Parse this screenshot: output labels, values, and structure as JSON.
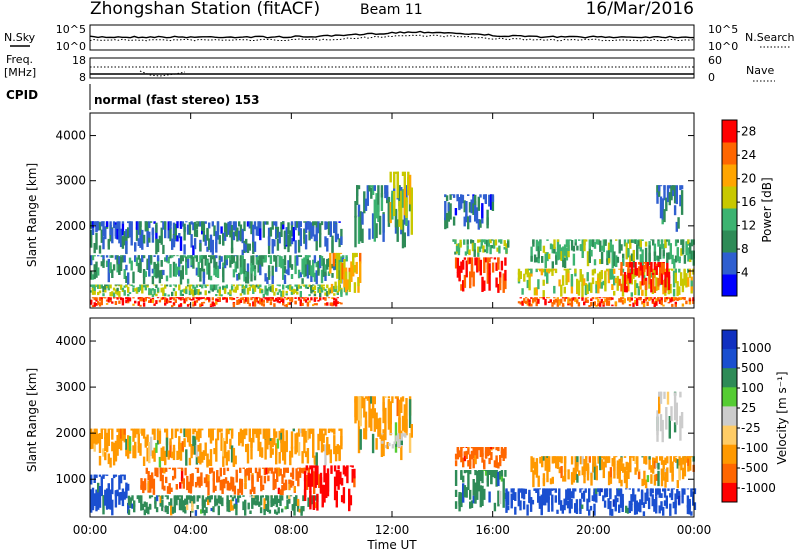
{
  "header": {
    "station": "Zhongshan Station (fitACF)",
    "beam": "Beam 11",
    "date": "16/Mar/2016"
  },
  "top_panels": {
    "nsky_label": "N.Sky",
    "nsearch_label": "N.Search",
    "freq_label_line1": "Freq.",
    "freq_label_line2": "[MHz]",
    "nave_label": "Nave",
    "cpid_label": "CPID",
    "cpid_text": "normal (fast stereo) 153",
    "left_ticks_noise": [
      "10^5",
      "10^0"
    ],
    "right_ticks_noise": [
      "10^5",
      "10^0"
    ],
    "left_ticks_freq": [
      "18",
      "8"
    ],
    "right_ticks_nave": [
      "60",
      "0"
    ]
  },
  "colors": {
    "power_scale": [
      "#0000ff",
      "#2f5fd0",
      "#2e8b57",
      "#3cb371",
      "#c8c800",
      "#ffa500",
      "#ff6600",
      "#ff0000"
    ],
    "velocity_scale": [
      "#ff0000",
      "#ff6600",
      "#ff9900",
      "#ffcc66",
      "#cccccc",
      "#55cc33",
      "#2e8b57",
      "#1a4fd0",
      "#1030c0"
    ]
  },
  "chart_data": [
    {
      "type": "heatmap",
      "quantity": "Power",
      "xlabel": "",
      "ylabel": "Slant Range [km]",
      "ylim": [
        180,
        4500
      ],
      "yticks": [
        "1000",
        "2000",
        "3000",
        "4000"
      ],
      "xticks": [
        "00:00",
        "04:00",
        "08:00",
        "12:00",
        "16:00",
        "20:00",
        "00:00"
      ],
      "colorbar": {
        "label": "Power [dB]",
        "ticks": [
          "4",
          "8",
          "12",
          "16",
          "20",
          "24",
          "28"
        ],
        "range": [
          0,
          30
        ]
      },
      "regions": [
        {
          "t0": 0.0,
          "t1": 10.0,
          "r0": 200,
          "r1": 420,
          "level": 26
        },
        {
          "t0": 0.0,
          "t1": 10.2,
          "r0": 420,
          "r1": 700,
          "level": 14
        },
        {
          "t0": 0.0,
          "t1": 10.2,
          "r0": 700,
          "r1": 1350,
          "level": 10
        },
        {
          "t0": 0.0,
          "t1": 10.0,
          "r0": 1350,
          "r1": 2100,
          "level": 7
        },
        {
          "t0": 9.5,
          "t1": 10.7,
          "r0": 500,
          "r1": 1400,
          "level": 19
        },
        {
          "t0": 10.5,
          "t1": 12.7,
          "r0": 1500,
          "r1": 2900,
          "level": 9
        },
        {
          "t0": 11.9,
          "t1": 12.8,
          "r0": 1800,
          "r1": 3200,
          "level": 16
        },
        {
          "t0": 14.5,
          "t1": 16.5,
          "r0": 500,
          "r1": 1300,
          "level": 27
        },
        {
          "t0": 14.4,
          "t1": 16.6,
          "r0": 1300,
          "r1": 1700,
          "level": 14
        },
        {
          "t0": 14.0,
          "t1": 16.0,
          "r0": 1900,
          "r1": 2700,
          "level": 7
        },
        {
          "t0": 17.0,
          "t1": 24.0,
          "r0": 200,
          "r1": 420,
          "level": 25
        },
        {
          "t0": 17.0,
          "t1": 24.0,
          "r0": 420,
          "r1": 1050,
          "level": 17
        },
        {
          "t0": 17.5,
          "t1": 24.0,
          "r0": 1050,
          "r1": 1700,
          "level": 12
        },
        {
          "t0": 21.0,
          "t1": 23.0,
          "r0": 500,
          "r1": 1200,
          "level": 27
        },
        {
          "t0": 22.5,
          "t1": 23.5,
          "r0": 1800,
          "r1": 2900,
          "level": 8
        }
      ]
    },
    {
      "type": "heatmap",
      "quantity": "Velocity",
      "xlabel": "Time UT",
      "ylabel": "Slant Range [km]",
      "ylim": [
        180,
        4500
      ],
      "yticks": [
        "1000",
        "2000",
        "3000",
        "4000"
      ],
      "xticks": [
        "00:00",
        "04:00",
        "08:00",
        "12:00",
        "16:00",
        "20:00",
        "00:00"
      ],
      "colorbar": {
        "label": "Velocity [m s⁻¹]",
        "ticks": [
          "1000",
          "500",
          "100",
          "25",
          "-25",
          "-100",
          "-500",
          "-1000"
        ]
      },
      "regions": [
        {
          "t0": 0.0,
          "t1": 1.5,
          "r0": 200,
          "r1": 1100,
          "level": 500
        },
        {
          "t0": 1.5,
          "t1": 9.0,
          "r0": 200,
          "r1": 650,
          "level": 100
        },
        {
          "t0": 2.0,
          "t1": 9.0,
          "r0": 650,
          "r1": 1250,
          "level": -500
        },
        {
          "t0": 0.0,
          "t1": 10.0,
          "r0": 1250,
          "r1": 2100,
          "level": -100
        },
        {
          "t0": 8.5,
          "t1": 10.5,
          "r0": 300,
          "r1": 1300,
          "level": -1000
        },
        {
          "t0": 10.5,
          "t1": 12.8,
          "r0": 1400,
          "r1": 2800,
          "level": -100
        },
        {
          "t0": 11.5,
          "t1": 12.5,
          "r0": 1600,
          "r1": 2000,
          "level": 0
        },
        {
          "t0": 14.5,
          "t1": 16.5,
          "r0": 300,
          "r1": 1200,
          "level": 100
        },
        {
          "t0": 14.5,
          "t1": 16.5,
          "r0": 1200,
          "r1": 1700,
          "level": -500
        },
        {
          "t0": 16.5,
          "t1": 24.0,
          "r0": 200,
          "r1": 800,
          "level": 500
        },
        {
          "t0": 17.5,
          "t1": 24.0,
          "r0": 800,
          "r1": 1500,
          "level": -100
        },
        {
          "t0": 22.5,
          "t1": 23.5,
          "r0": 1800,
          "r1": 2900,
          "level": 0
        }
      ]
    }
  ]
}
